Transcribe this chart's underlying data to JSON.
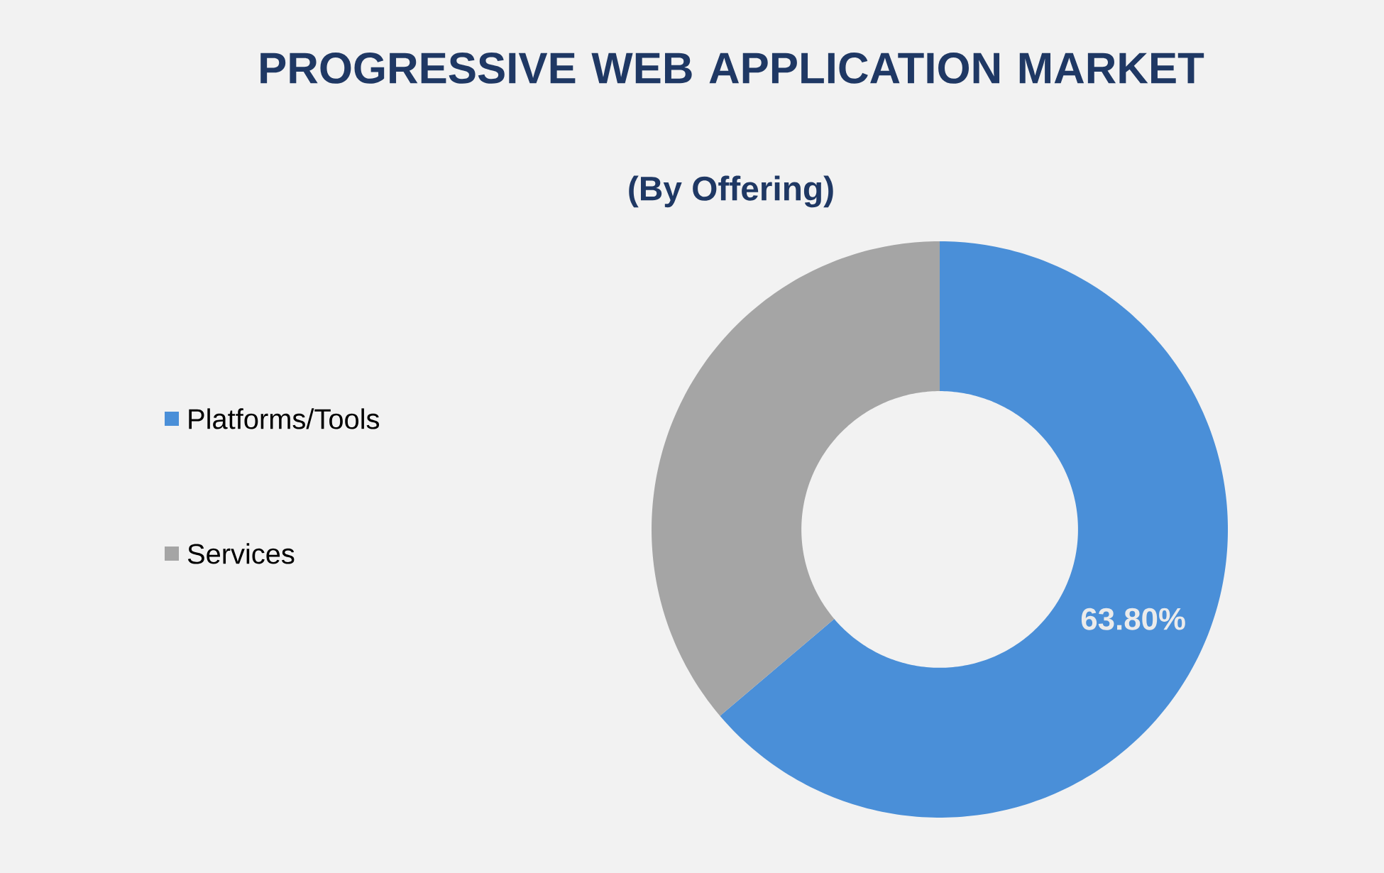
{
  "chart_data": {
    "type": "donut",
    "title": "PROGRESSIVE WEB APPLICATION MARKET",
    "subtitle": "(By Offering)",
    "categories": [
      "Platforms/Tools",
      "Services"
    ],
    "values": [
      63.8,
      36.2
    ],
    "colors": [
      "#4a8fd8",
      "#a5a5a5"
    ],
    "value_labels": [
      "63.80%",
      null
    ],
    "legend": "left"
  }
}
